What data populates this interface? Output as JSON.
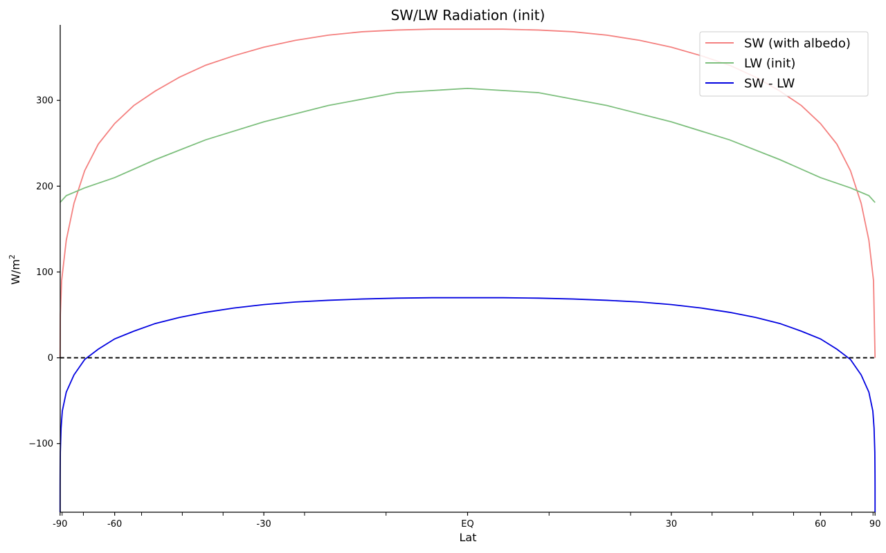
{
  "chart_data": {
    "type": "line",
    "title": "SW/LW Radiation (init)",
    "xlabel": "Lat",
    "ylabel": "W/m",
    "ylabel_superscript": "2",
    "xlim": [
      -91.5,
      91.5
    ],
    "ylim": [
      -180,
      388
    ],
    "x_ticks": [
      {
        "value": -90,
        "label": "-90"
      },
      {
        "value": -60,
        "label": "-60"
      },
      {
        "value": -30,
        "label": "-30"
      },
      {
        "value": 0,
        "label": "EQ"
      },
      {
        "value": 30,
        "label": "30"
      },
      {
        "value": 60,
        "label": "60"
      },
      {
        "value": 90,
        "label": "90"
      }
    ],
    "x_minor_ticks": [
      -84.26,
      -70.53,
      -53.13,
      -44.43,
      -36.87,
      -23.58,
      -11.54,
      11.54,
      23.58,
      36.87,
      44.43,
      53.13,
      70.53,
      84.26
    ],
    "y_ticks": [
      {
        "value": -100,
        "label": "−100"
      },
      {
        "value": 0,
        "label": "0"
      },
      {
        "value": 100,
        "label": "100"
      },
      {
        "value": 200,
        "label": "200"
      },
      {
        "value": 300,
        "label": "300"
      }
    ],
    "x_scale": "sine of latitude",
    "grid": false,
    "legend_position": "top-right",
    "series": [
      {
        "name": "SW (with albedo)",
        "color": "#f4807f",
        "x": [
          -90,
          -88,
          -85,
          -80,
          -75,
          -70,
          -65,
          -60,
          -55,
          -50,
          -45,
          -40,
          -35,
          -30,
          -25,
          -20,
          -15,
          -10,
          -5,
          0,
          5,
          10,
          15,
          20,
          25,
          30,
          35,
          40,
          45,
          50,
          55,
          60,
          65,
          70,
          75,
          80,
          85,
          90
        ],
        "values": [
          0,
          50,
          90,
          137,
          180,
          218,
          249,
          273,
          294,
          311,
          327,
          341,
          352,
          362,
          370,
          376,
          380,
          382,
          383,
          383,
          383,
          382,
          380,
          376,
          370,
          362,
          352,
          341,
          327,
          311,
          294,
          273,
          249,
          218,
          180,
          137,
          90,
          0
        ]
      },
      {
        "name": "LW (init)",
        "color": "#7dbf7d",
        "x": [
          -90,
          -80,
          -70,
          -60,
          -50,
          -40,
          -30,
          -20,
          -10,
          0,
          10,
          20,
          30,
          40,
          50,
          60,
          70,
          80,
          90
        ],
        "values": [
          181,
          189,
          198,
          210,
          231,
          254,
          275,
          294,
          309,
          314,
          309,
          294,
          275,
          254,
          231,
          210,
          198,
          189,
          181
        ]
      },
      {
        "name": "SW - LW",
        "color": "#0000e0",
        "x": [
          -90,
          -89.5,
          -89,
          -88,
          -86,
          -84,
          -80,
          -75,
          -70,
          -65,
          -60,
          -55,
          -50,
          -45,
          -40,
          -35,
          -30,
          -25,
          -20,
          -15,
          -10,
          -5,
          0,
          5,
          10,
          15,
          20,
          25,
          30,
          35,
          40,
          45,
          50,
          55,
          60,
          65,
          70,
          75,
          80,
          84,
          86,
          88,
          89,
          89.5,
          90
        ],
        "values": [
          -180,
          -150,
          -135,
          -110,
          -82,
          -62,
          -40,
          -20,
          -2,
          10,
          22,
          31,
          40,
          47,
          53,
          58,
          62,
          65,
          67,
          68.5,
          69.5,
          70,
          70,
          70,
          69.5,
          68.5,
          67,
          65,
          62,
          58,
          53,
          47,
          40,
          31,
          22,
          10,
          -2,
          -20,
          -40,
          -62,
          -82,
          -110,
          -135,
          -150,
          -180
        ]
      },
      {
        "color": "#000000",
        "dashed": true,
        "x": [
          -90,
          90
        ],
        "values": [
          0,
          0
        ]
      }
    ]
  }
}
